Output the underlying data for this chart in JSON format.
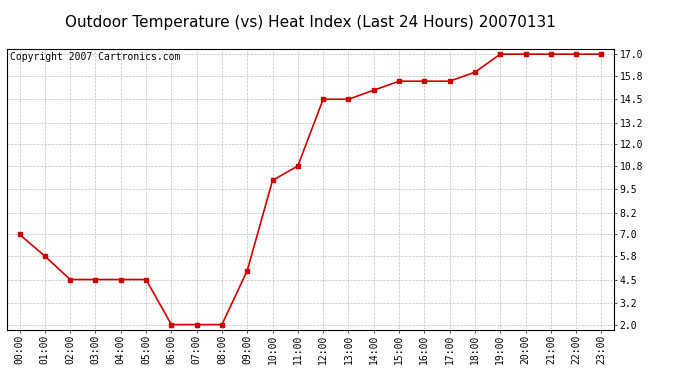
{
  "title": "Outdoor Temperature (vs) Heat Index (Last 24 Hours) 20070131",
  "copyright_text": "Copyright 2007 Cartronics.com",
  "x_labels": [
    "00:00",
    "01:00",
    "02:00",
    "03:00",
    "04:00",
    "05:00",
    "06:00",
    "07:00",
    "08:00",
    "09:00",
    "10:00",
    "11:00",
    "12:00",
    "13:00",
    "14:00",
    "15:00",
    "16:00",
    "17:00",
    "18:00",
    "19:00",
    "20:00",
    "21:00",
    "22:00",
    "23:00"
  ],
  "y_values": [
    7.0,
    5.8,
    4.5,
    4.5,
    4.5,
    4.5,
    2.0,
    2.0,
    2.0,
    5.0,
    10.0,
    10.8,
    14.5,
    14.5,
    15.0,
    15.5,
    15.5,
    15.5,
    16.0,
    17.0,
    17.0,
    17.0,
    17.0,
    17.0
  ],
  "y_ticks": [
    2.0,
    3.2,
    4.5,
    5.8,
    7.0,
    8.2,
    9.5,
    10.8,
    12.0,
    13.2,
    14.5,
    15.8,
    17.0
  ],
  "y_min": 1.7,
  "y_max": 17.3,
  "line_color": "#cc0000",
  "marker": "s",
  "marker_size": 3,
  "bg_color": "#ffffff",
  "grid_color": "#c0c0c0",
  "title_fontsize": 11,
  "axis_label_fontsize": 7,
  "copyright_fontsize": 7
}
